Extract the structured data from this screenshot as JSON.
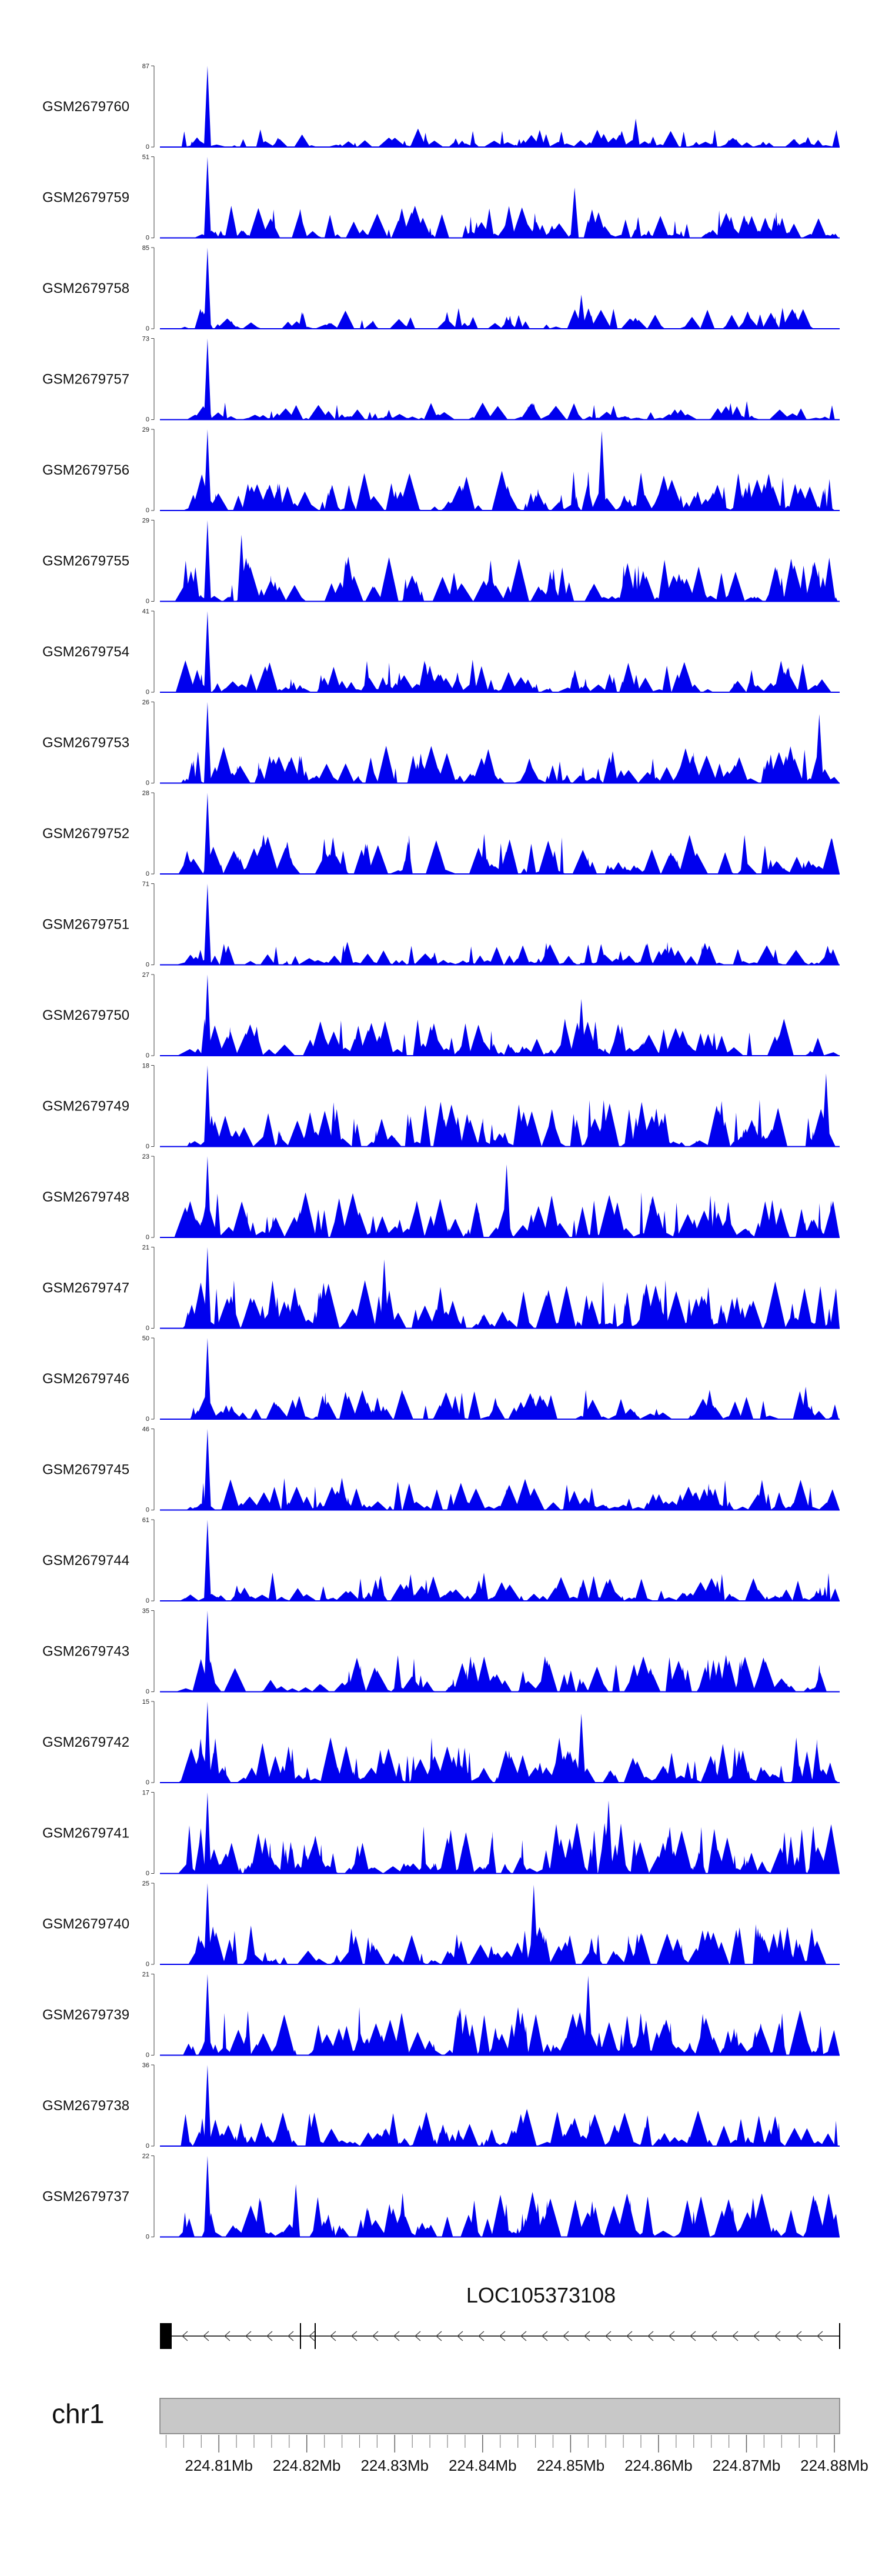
{
  "chart_data": {
    "type": "area",
    "title": "",
    "colors": {
      "signal": "#0000ee",
      "axis": "#000000",
      "ideogram": "#c8c8c8",
      "gene": "#000000"
    },
    "tracks": [
      {
        "name": "GSM2679760",
        "ymin": "0",
        "ymax": "87",
        "max": 87,
        "peak": 0.07,
        "second": 0.7,
        "secondFrac": 0.35,
        "density": 0.35,
        "seed": 1
      },
      {
        "name": "GSM2679759",
        "ymin": "0",
        "ymax": "51",
        "max": 51,
        "peak": 0.07,
        "second": 0.61,
        "secondFrac": 0.62,
        "density": 0.6,
        "seed": 2
      },
      {
        "name": "GSM2679758",
        "ymin": "0",
        "ymax": "85",
        "max": 85,
        "peak": 0.07,
        "second": 0.62,
        "secondFrac": 0.42,
        "density": 0.4,
        "seed": 3
      },
      {
        "name": "GSM2679757",
        "ymin": "0",
        "ymax": "73",
        "max": 73,
        "peak": 0.07,
        "second": 0.55,
        "secondFrac": 0.2,
        "density": 0.35,
        "seed": 4
      },
      {
        "name": "GSM2679756",
        "ymin": "0",
        "ymax": "29",
        "max": 29,
        "peak": 0.07,
        "second": 0.65,
        "secondFrac": 0.98,
        "density": 0.75,
        "seed": 5
      },
      {
        "name": "GSM2679755",
        "ymin": "0",
        "ymax": "29",
        "max": 29,
        "peak": 0.07,
        "second": 0.12,
        "secondFrac": 0.82,
        "density": 0.85,
        "seed": 6
      },
      {
        "name": "GSM2679754",
        "ymin": "0",
        "ymax": "41",
        "max": 41,
        "peak": 0.07,
        "second": 0.46,
        "secondFrac": 0.4,
        "density": 0.6,
        "seed": 7
      },
      {
        "name": "GSM2679753",
        "ymin": "0",
        "ymax": "26",
        "max": 26,
        "peak": 0.07,
        "second": 0.97,
        "secondFrac": 0.85,
        "density": 0.7,
        "seed": 8
      },
      {
        "name": "GSM2679752",
        "ymin": "0",
        "ymax": "28",
        "max": 28,
        "peak": 0.07,
        "second": 0.86,
        "secondFrac": 0.48,
        "density": 0.75,
        "seed": 9
      },
      {
        "name": "GSM2679751",
        "ymin": "0",
        "ymax": "71",
        "max": 71,
        "peak": 0.07,
        "second": 0.63,
        "secondFrac": 0.25,
        "density": 0.45,
        "seed": 10
      },
      {
        "name": "GSM2679750",
        "ymin": "0",
        "ymax": "27",
        "max": 27,
        "peak": 0.07,
        "second": 0.62,
        "secondFrac": 0.7,
        "density": 0.7,
        "seed": 11
      },
      {
        "name": "GSM2679749",
        "ymin": "0",
        "ymax": "18",
        "max": 18,
        "peak": 0.07,
        "second": 0.98,
        "secondFrac": 0.9,
        "density": 0.9,
        "seed": 12
      },
      {
        "name": "GSM2679748",
        "ymin": "0",
        "ymax": "23",
        "max": 23,
        "peak": 0.07,
        "second": 0.51,
        "secondFrac": 0.9,
        "density": 0.85,
        "seed": 13
      },
      {
        "name": "GSM2679747",
        "ymin": "0",
        "ymax": "21",
        "max": 21,
        "peak": 0.07,
        "second": 0.33,
        "secondFrac": 0.85,
        "density": 0.9,
        "seed": 14
      },
      {
        "name": "GSM2679746",
        "ymin": "0",
        "ymax": "50",
        "max": 50,
        "peak": 0.07,
        "second": 0.95,
        "secondFrac": 0.4,
        "density": 0.55,
        "seed": 15
      },
      {
        "name": "GSM2679745",
        "ymin": "0",
        "ymax": "46",
        "max": 46,
        "peak": 0.07,
        "second": 0.35,
        "secondFrac": 0.35,
        "density": 0.6,
        "seed": 16
      },
      {
        "name": "GSM2679744",
        "ymin": "0",
        "ymax": "61",
        "max": 61,
        "peak": 0.07,
        "second": 0.82,
        "secondFrac": 0.25,
        "density": 0.55,
        "seed": 17
      },
      {
        "name": "GSM2679743",
        "ymin": "0",
        "ymax": "35",
        "max": 35,
        "peak": 0.07,
        "second": 0.35,
        "secondFrac": 0.45,
        "density": 0.7,
        "seed": 18
      },
      {
        "name": "GSM2679742",
        "ymin": "0",
        "ymax": "15",
        "max": 15,
        "peak": 0.07,
        "second": 0.62,
        "secondFrac": 0.85,
        "density": 0.85,
        "seed": 19
      },
      {
        "name": "GSM2679741",
        "ymin": "0",
        "ymax": "17",
        "max": 17,
        "peak": 0.07,
        "second": 0.66,
        "secondFrac": 0.9,
        "density": 0.95,
        "seed": 20
      },
      {
        "name": "GSM2679740",
        "ymin": "0",
        "ymax": "25",
        "max": 25,
        "peak": 0.07,
        "second": 0.55,
        "secondFrac": 0.98,
        "density": 0.75,
        "seed": 21
      },
      {
        "name": "GSM2679739",
        "ymin": "0",
        "ymax": "21",
        "max": 21,
        "peak": 0.07,
        "second": 0.63,
        "secondFrac": 0.98,
        "density": 0.9,
        "seed": 22
      },
      {
        "name": "GSM2679738",
        "ymin": "0",
        "ymax": "36",
        "max": 36,
        "peak": 0.07,
        "second": 0.22,
        "secondFrac": 0.4,
        "density": 0.7,
        "seed": 23
      },
      {
        "name": "GSM2679737",
        "ymin": "0",
        "ymax": "22",
        "max": 22,
        "peak": 0.07,
        "second": 0.2,
        "secondFrac": 0.65,
        "density": 0.85,
        "seed": 24
      }
    ],
    "gene": {
      "name": "LOC105373108",
      "strand": "-"
    },
    "chromosome": {
      "name": "chr1"
    },
    "xaxis": {
      "unit": "Mb",
      "range": [
        224.8033,
        224.8806
      ],
      "ticks": [
        {
          "value": 224.81,
          "label": "224.81Mb"
        },
        {
          "value": 224.82,
          "label": "224.82Mb"
        },
        {
          "value": 224.83,
          "label": "224.83Mb"
        },
        {
          "value": 224.84,
          "label": "224.84Mb"
        },
        {
          "value": 224.85,
          "label": "224.85Mb"
        },
        {
          "value": 224.86,
          "label": "224.86Mb"
        },
        {
          "value": 224.87,
          "label": "224.87Mb"
        },
        {
          "value": 224.88,
          "label": "224.88Mb"
        }
      ],
      "minor_step": 0.002
    }
  }
}
